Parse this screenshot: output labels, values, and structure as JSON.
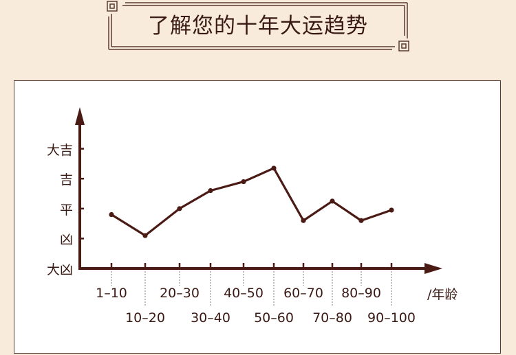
{
  "header": {
    "title": "了解您的十年大运趋势"
  },
  "colors": {
    "background": "#f8ebdc",
    "line": "#4a1a14",
    "panel": "#ffffff",
    "text": "#3a1a14"
  },
  "chart_data": {
    "type": "line",
    "title": "",
    "xlabel": "/年龄",
    "ylabel": "",
    "y_levels": [
      "大凶",
      "凶",
      "平",
      "吉",
      "大吉"
    ],
    "ylim": [
      0,
      4
    ],
    "categories": [
      "1–10",
      "10–20",
      "20–30",
      "30–40",
      "40–50",
      "50–60",
      "60–70",
      "70–80",
      "80–90",
      "90–100"
    ],
    "series": [
      {
        "values": [
          1.8,
          1.1,
          2.0,
          2.6,
          2.9,
          3.35,
          1.6,
          2.25,
          1.6,
          1.95
        ]
      }
    ],
    "grid": false,
    "legend": "none"
  }
}
